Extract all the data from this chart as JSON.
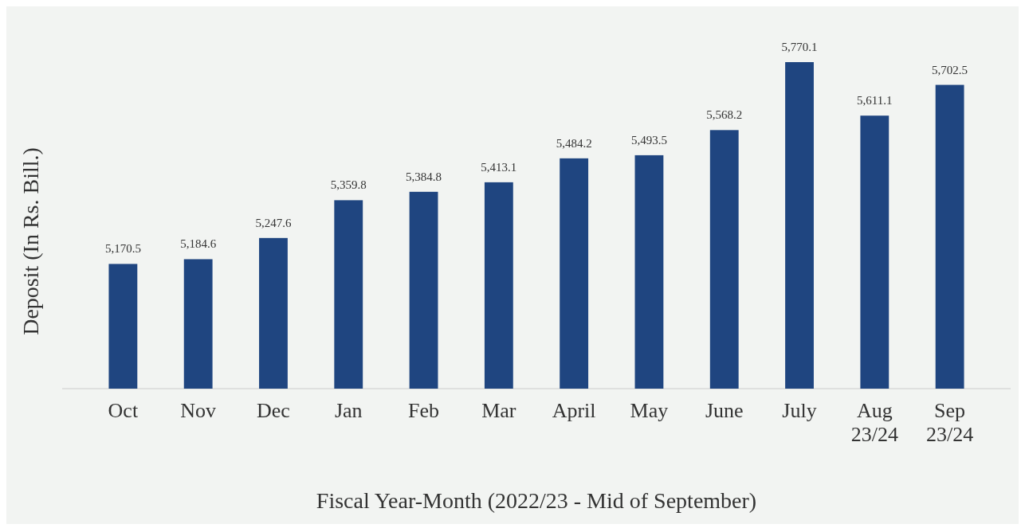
{
  "chart_data": {
    "type": "bar",
    "xlabel": "Fiscal Year-Month (2022/23 - Mid of September)",
    "ylabel": "Deposit (In Rs. Bill.)",
    "categories": [
      "Oct",
      "Nov",
      "Dec",
      "Jan",
      "Feb",
      "Mar",
      "April",
      "May",
      "June",
      "July",
      "Aug 23/24",
      "Sep 23/24"
    ],
    "values": [
      5170.5,
      5184.6,
      5247.6,
      5359.8,
      5384.8,
      5413.1,
      5484.2,
      5493.5,
      5568.2,
      5770.1,
      5611.1,
      5702.5
    ],
    "value_labels": [
      "5,170.5",
      "5,184.6",
      "5,247.6",
      "5,359.8",
      "5,384.8",
      "5,413.1",
      "5,484.2",
      "5,493.5",
      "5,568.2",
      "5,770.1",
      "5,611.1",
      "5,702.5"
    ],
    "color": "#1f4580",
    "ylim": [
      4800,
      5770.1
    ],
    "tick_labels": "x"
  }
}
